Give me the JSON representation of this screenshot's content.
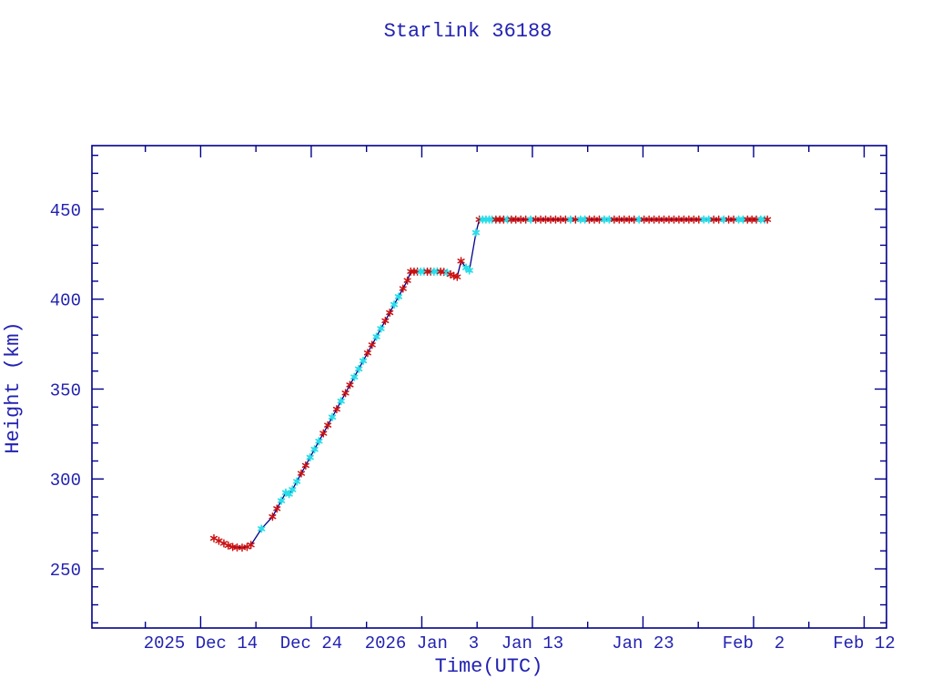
{
  "chart_data": {
    "type": "line",
    "title": "Starlink 36188",
    "xlabel": "Time(UTC)",
    "ylabel": "Height (km)",
    "x_unit": "days_since_2025_Dec_14_UTC",
    "xlim_days": [
      -9.83,
      62.02
    ],
    "ylim": [
      217.1,
      485.4
    ],
    "x_major_ticks": [
      {
        "day": 0,
        "label": "2025 Dec 14"
      },
      {
        "day": 10,
        "label": "Dec 24"
      },
      {
        "day": 20,
        "label": "2026 Jan  3"
      },
      {
        "day": 30,
        "label": "Jan 13"
      },
      {
        "day": 40,
        "label": "Jan 23"
      },
      {
        "day": 50,
        "label": "Feb  2"
      },
      {
        "day": 60,
        "label": "Feb 12"
      }
    ],
    "x_minor_step_days": 5,
    "y_major_ticks": [
      250,
      300,
      350,
      400,
      450
    ],
    "y_minor_step": 10,
    "grid": false,
    "legend": "none",
    "colors": {
      "frame": "#00008a",
      "text": "#2222b2",
      "line": "#00008a",
      "marker_red": "#cc1111",
      "marker_cyan": "#2adde8"
    },
    "marker_legend": {
      "r": "red asterisk observation",
      "c": "cyan star observation"
    },
    "series": [
      {
        "name": "height_km",
        "points": [
          [
            1.2,
            267.0,
            "r"
          ],
          [
            1.65,
            265.6,
            "r"
          ],
          [
            2.1,
            264.2,
            "r"
          ],
          [
            2.5,
            263.0,
            "r"
          ],
          [
            2.9,
            262.2,
            "r"
          ],
          [
            3.3,
            261.9,
            "r"
          ],
          [
            3.75,
            261.8,
            "r"
          ],
          [
            4.2,
            262.2,
            "r"
          ],
          [
            4.55,
            263.3,
            "r"
          ],
          [
            5.5,
            272.3,
            "c"
          ],
          [
            6.5,
            279.0,
            "r"
          ],
          [
            6.9,
            283.5,
            "r"
          ],
          [
            7.3,
            287.9,
            "c"
          ],
          [
            7.7,
            292.4,
            "c"
          ],
          [
            8.0,
            291.6,
            "c"
          ],
          [
            8.3,
            294.1,
            "c"
          ],
          [
            8.7,
            298.6,
            "c"
          ],
          [
            9.1,
            303.1,
            "r"
          ],
          [
            9.5,
            307.5,
            "r"
          ],
          [
            9.9,
            312.0,
            "c"
          ],
          [
            10.3,
            316.5,
            "c"
          ],
          [
            10.7,
            321.0,
            "c"
          ],
          [
            11.1,
            325.4,
            "r"
          ],
          [
            11.5,
            329.9,
            "r"
          ],
          [
            11.9,
            334.4,
            "c"
          ],
          [
            12.3,
            338.8,
            "r"
          ],
          [
            12.7,
            343.3,
            "c"
          ],
          [
            13.1,
            347.8,
            "r"
          ],
          [
            13.5,
            352.3,
            "r"
          ],
          [
            13.9,
            356.7,
            "c"
          ],
          [
            14.3,
            361.2,
            "c"
          ],
          [
            14.7,
            365.7,
            "c"
          ],
          [
            15.1,
            370.1,
            "r"
          ],
          [
            15.5,
            374.6,
            "r"
          ],
          [
            15.9,
            379.1,
            "c"
          ],
          [
            16.3,
            383.6,
            "c"
          ],
          [
            16.7,
            388.0,
            "r"
          ],
          [
            17.1,
            392.5,
            "r"
          ],
          [
            17.5,
            397.0,
            "c"
          ],
          [
            17.9,
            401.4,
            "c"
          ],
          [
            18.3,
            405.9,
            "r"
          ],
          [
            18.7,
            410.4,
            "r"
          ],
          [
            19.0,
            415.4,
            "r"
          ],
          [
            19.3,
            415.3,
            "r"
          ],
          [
            19.6,
            415.4,
            "r"
          ],
          [
            19.9,
            415.3,
            "c"
          ],
          [
            20.2,
            415.4,
            "c"
          ],
          [
            20.5,
            415.3,
            "r"
          ],
          [
            20.8,
            415.4,
            "r"
          ],
          [
            21.1,
            415.3,
            "c"
          ],
          [
            21.4,
            415.4,
            "c"
          ],
          [
            21.7,
            415.3,
            "r"
          ],
          [
            22.0,
            415.2,
            "r"
          ],
          [
            22.3,
            414.7,
            "c"
          ],
          [
            22.6,
            413.8,
            "r"
          ],
          [
            22.9,
            412.9,
            "r"
          ],
          [
            23.2,
            412.4,
            "r"
          ],
          [
            23.55,
            421.2,
            "r"
          ],
          [
            24.0,
            417.5,
            "c"
          ],
          [
            24.3,
            416.0,
            "c"
          ],
          [
            24.9,
            437.0,
            "c"
          ],
          [
            25.2,
            444.3,
            "r"
          ],
          [
            25.5,
            444.3,
            "c"
          ],
          [
            25.8,
            444.3,
            "c"
          ],
          [
            26.1,
            444.3,
            "c"
          ],
          [
            26.35,
            444.3,
            "c"
          ],
          [
            26.7,
            444.3,
            "r"
          ],
          [
            27.05,
            444.3,
            "r"
          ],
          [
            27.4,
            444.3,
            "r"
          ],
          [
            27.75,
            444.3,
            "c"
          ],
          [
            28.1,
            444.3,
            "r"
          ],
          [
            28.5,
            444.3,
            "r"
          ],
          [
            28.95,
            444.3,
            "r"
          ],
          [
            29.4,
            444.3,
            "r"
          ],
          [
            29.85,
            444.3,
            "c"
          ],
          [
            30.3,
            444.3,
            "r"
          ],
          [
            30.75,
            444.3,
            "r"
          ],
          [
            31.2,
            444.3,
            "r"
          ],
          [
            31.65,
            444.3,
            "r"
          ],
          [
            32.1,
            444.3,
            "r"
          ],
          [
            32.55,
            444.3,
            "r"
          ],
          [
            33.0,
            444.3,
            "r"
          ],
          [
            33.45,
            444.3,
            "c"
          ],
          [
            33.9,
            444.3,
            "r"
          ],
          [
            34.35,
            444.3,
            "c"
          ],
          [
            34.75,
            444.3,
            "c"
          ],
          [
            35.15,
            444.3,
            "r"
          ],
          [
            35.6,
            444.3,
            "r"
          ],
          [
            36.05,
            444.3,
            "r"
          ],
          [
            36.5,
            444.3,
            "c"
          ],
          [
            36.95,
            444.3,
            "c"
          ],
          [
            37.4,
            444.3,
            "r"
          ],
          [
            37.85,
            444.3,
            "r"
          ],
          [
            38.3,
            444.3,
            "r"
          ],
          [
            38.75,
            444.3,
            "r"
          ],
          [
            39.2,
            444.3,
            "r"
          ],
          [
            39.65,
            444.3,
            "c"
          ],
          [
            40.1,
            444.3,
            "r"
          ],
          [
            40.55,
            444.3,
            "r"
          ],
          [
            41.0,
            444.3,
            "r"
          ],
          [
            41.45,
            444.3,
            "r"
          ],
          [
            41.9,
            444.3,
            "r"
          ],
          [
            42.35,
            444.3,
            "r"
          ],
          [
            42.8,
            444.3,
            "r"
          ],
          [
            43.25,
            444.3,
            "r"
          ],
          [
            43.7,
            444.3,
            "r"
          ],
          [
            44.15,
            444.3,
            "r"
          ],
          [
            44.6,
            444.3,
            "r"
          ],
          [
            45.05,
            444.3,
            "r"
          ],
          [
            45.5,
            444.3,
            "c"
          ],
          [
            45.95,
            444.3,
            "c"
          ],
          [
            46.4,
            444.3,
            "r"
          ],
          [
            46.85,
            444.3,
            "r"
          ],
          [
            47.3,
            444.3,
            "c"
          ],
          [
            47.75,
            444.3,
            "r"
          ],
          [
            48.2,
            444.3,
            "r"
          ],
          [
            48.65,
            444.3,
            "c"
          ],
          [
            49.05,
            444.3,
            "c"
          ],
          [
            49.45,
            444.3,
            "r"
          ],
          [
            49.85,
            444.3,
            "r"
          ],
          [
            50.25,
            444.3,
            "r"
          ],
          [
            50.65,
            444.3,
            "c"
          ],
          [
            51.0,
            444.3,
            "c"
          ],
          [
            51.25,
            444.3,
            "r"
          ]
        ]
      }
    ]
  }
}
